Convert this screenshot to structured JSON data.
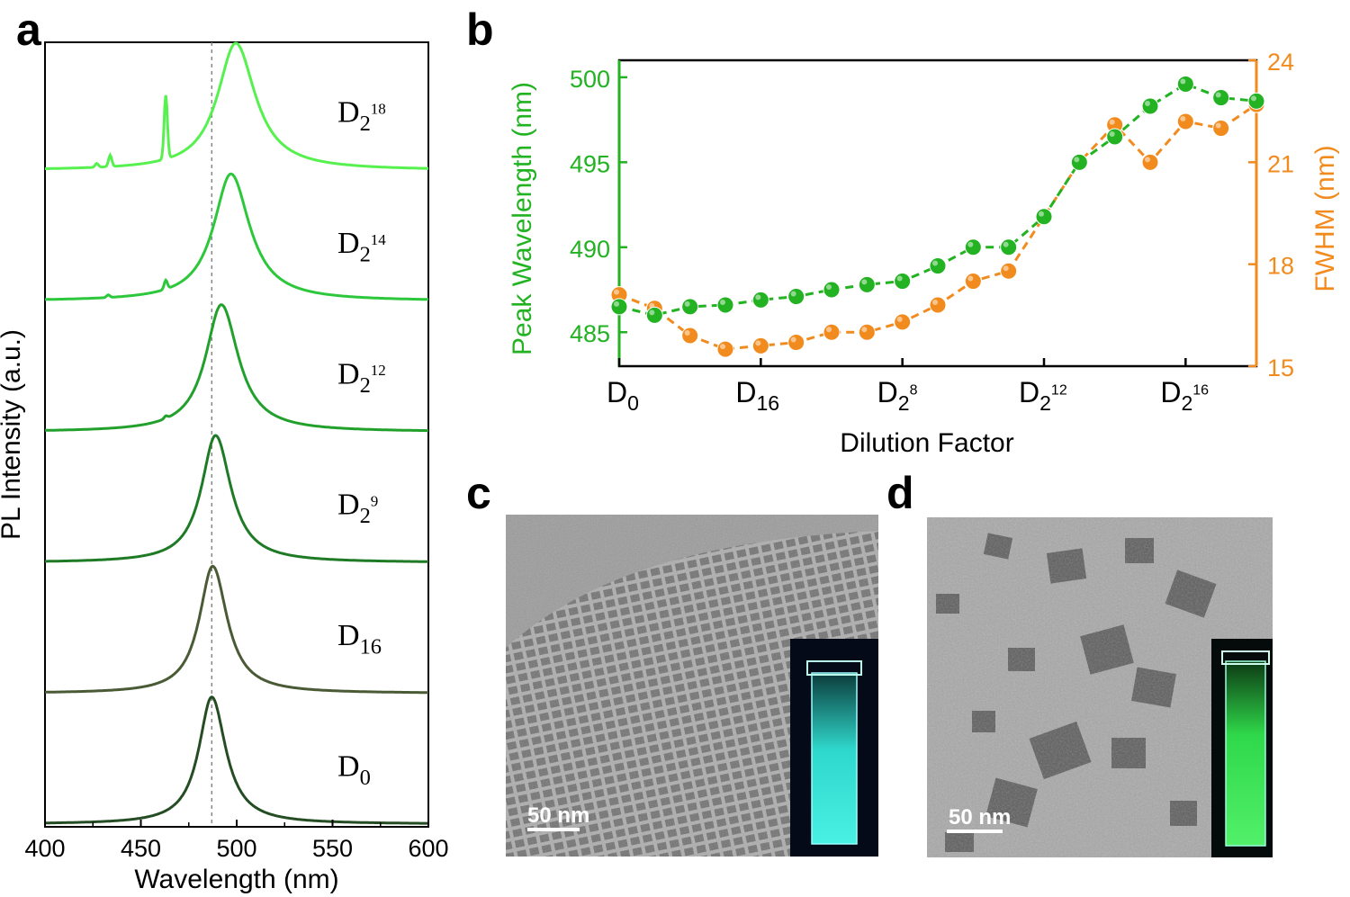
{
  "panels": {
    "a": "a",
    "b": "b",
    "c": "c",
    "d": "d"
  },
  "chart_data": [
    {
      "panel": "a",
      "type": "line",
      "xlabel": "Wavelength (nm)",
      "ylabel": "PL Intensity (a.u.)",
      "xlim": [
        400,
        600
      ],
      "xticks": [
        "400",
        "450",
        "500",
        "550",
        "600"
      ],
      "reference_line_x": 487,
      "grid": false,
      "legend": "none",
      "series": [
        {
          "name": "D0",
          "label_base": "D",
          "label_sub": "0",
          "label_sup": "",
          "color": "#254d23",
          "peak": 487,
          "fwhm": 16.5,
          "lines": []
        },
        {
          "name": "D16",
          "label_base": "D",
          "label_sub": "16",
          "label_sup": "",
          "color": "#495a35",
          "peak": 487.5,
          "fwhm": 17,
          "lines": []
        },
        {
          "name": "D2^9",
          "label_base": "D",
          "label_sub": "2",
          "label_sup": "9",
          "color": "#1f7a26",
          "peak": 489,
          "fwhm": 18,
          "lines": []
        },
        {
          "name": "D2^12",
          "label_base": "D",
          "label_sub": "2",
          "label_sup": "12",
          "color": "#22a02c",
          "peak": 492,
          "fwhm": 20,
          "lines": [
            [
              463,
              0.02
            ]
          ]
        },
        {
          "name": "D2^14",
          "label_base": "D",
          "label_sub": "2",
          "label_sup": "14",
          "color": "#2cc73a",
          "peak": 497,
          "fwhm": 22,
          "lines": [
            [
              433,
              0.02
            ],
            [
              463,
              0.07
            ]
          ]
        },
        {
          "name": "D2^18",
          "label_base": "D",
          "label_sub": "2",
          "label_sup": "18",
          "color": "#56f04f",
          "peak": 499.5,
          "fwhm": 23,
          "lines": [
            [
              427,
              0.03
            ],
            [
              434,
              0.09
            ],
            [
              463,
              0.5
            ]
          ]
        }
      ]
    },
    {
      "panel": "b",
      "type": "scatter",
      "xlabel": "Dilution Factor",
      "ylabel_left": "Peak Wavelength (nm)",
      "ylabel_right": "FWHM (nm)",
      "xticks": [
        {
          "base": "D",
          "sub": "0",
          "sup": ""
        },
        {
          "base": "D",
          "sub": "16",
          "sup": ""
        },
        {
          "base": "D",
          "sub": "2",
          "sup": "8"
        },
        {
          "base": "D",
          "sub": "2",
          "sup": "12"
        },
        {
          "base": "D",
          "sub": "2",
          "sup": "16"
        }
      ],
      "xtick_positions": [
        0,
        4,
        8,
        12,
        16
      ],
      "xlim": [
        0,
        18
      ],
      "ylim_left": [
        483,
        501
      ],
      "yticks_left": [
        "485",
        "490",
        "495",
        "500"
      ],
      "ylim_right": [
        15,
        24
      ],
      "yticks_right": [
        "15",
        "18",
        "21",
        "24"
      ],
      "left_color": "#22b222",
      "right_color": "#f28b1e",
      "series": [
        {
          "name": "Peak Wavelength",
          "axis": "left",
          "color": "#22b222",
          "x": [
            0,
            1,
            2,
            3,
            4,
            5,
            6,
            7,
            8,
            9,
            10,
            11,
            12,
            13,
            14,
            15,
            16,
            17,
            18
          ],
          "y": [
            486.5,
            486.0,
            486.5,
            486.6,
            486.9,
            487.1,
            487.5,
            487.8,
            488.0,
            488.9,
            490.0,
            490.0,
            491.8,
            495.0,
            496.5,
            498.3,
            499.6,
            498.8,
            498.6
          ]
        },
        {
          "name": "FWHM",
          "axis": "right",
          "color": "#f28b1e",
          "x": [
            0,
            1,
            2,
            3,
            4,
            5,
            6,
            7,
            8,
            9,
            10,
            11,
            12,
            13,
            14,
            15,
            16,
            17,
            18
          ],
          "y": [
            17.1,
            16.7,
            15.9,
            15.5,
            15.6,
            15.7,
            16.0,
            16.0,
            16.3,
            16.8,
            17.5,
            17.8,
            19.4,
            21.0,
            22.1,
            21.0,
            22.2,
            22.0,
            22.7
          ]
        }
      ]
    }
  ],
  "images": {
    "c": {
      "scale_bar": "50 nm",
      "inset_color": "#3ee6d8"
    },
    "d": {
      "scale_bar": "50 nm",
      "inset_color": "#3fe85a"
    }
  }
}
